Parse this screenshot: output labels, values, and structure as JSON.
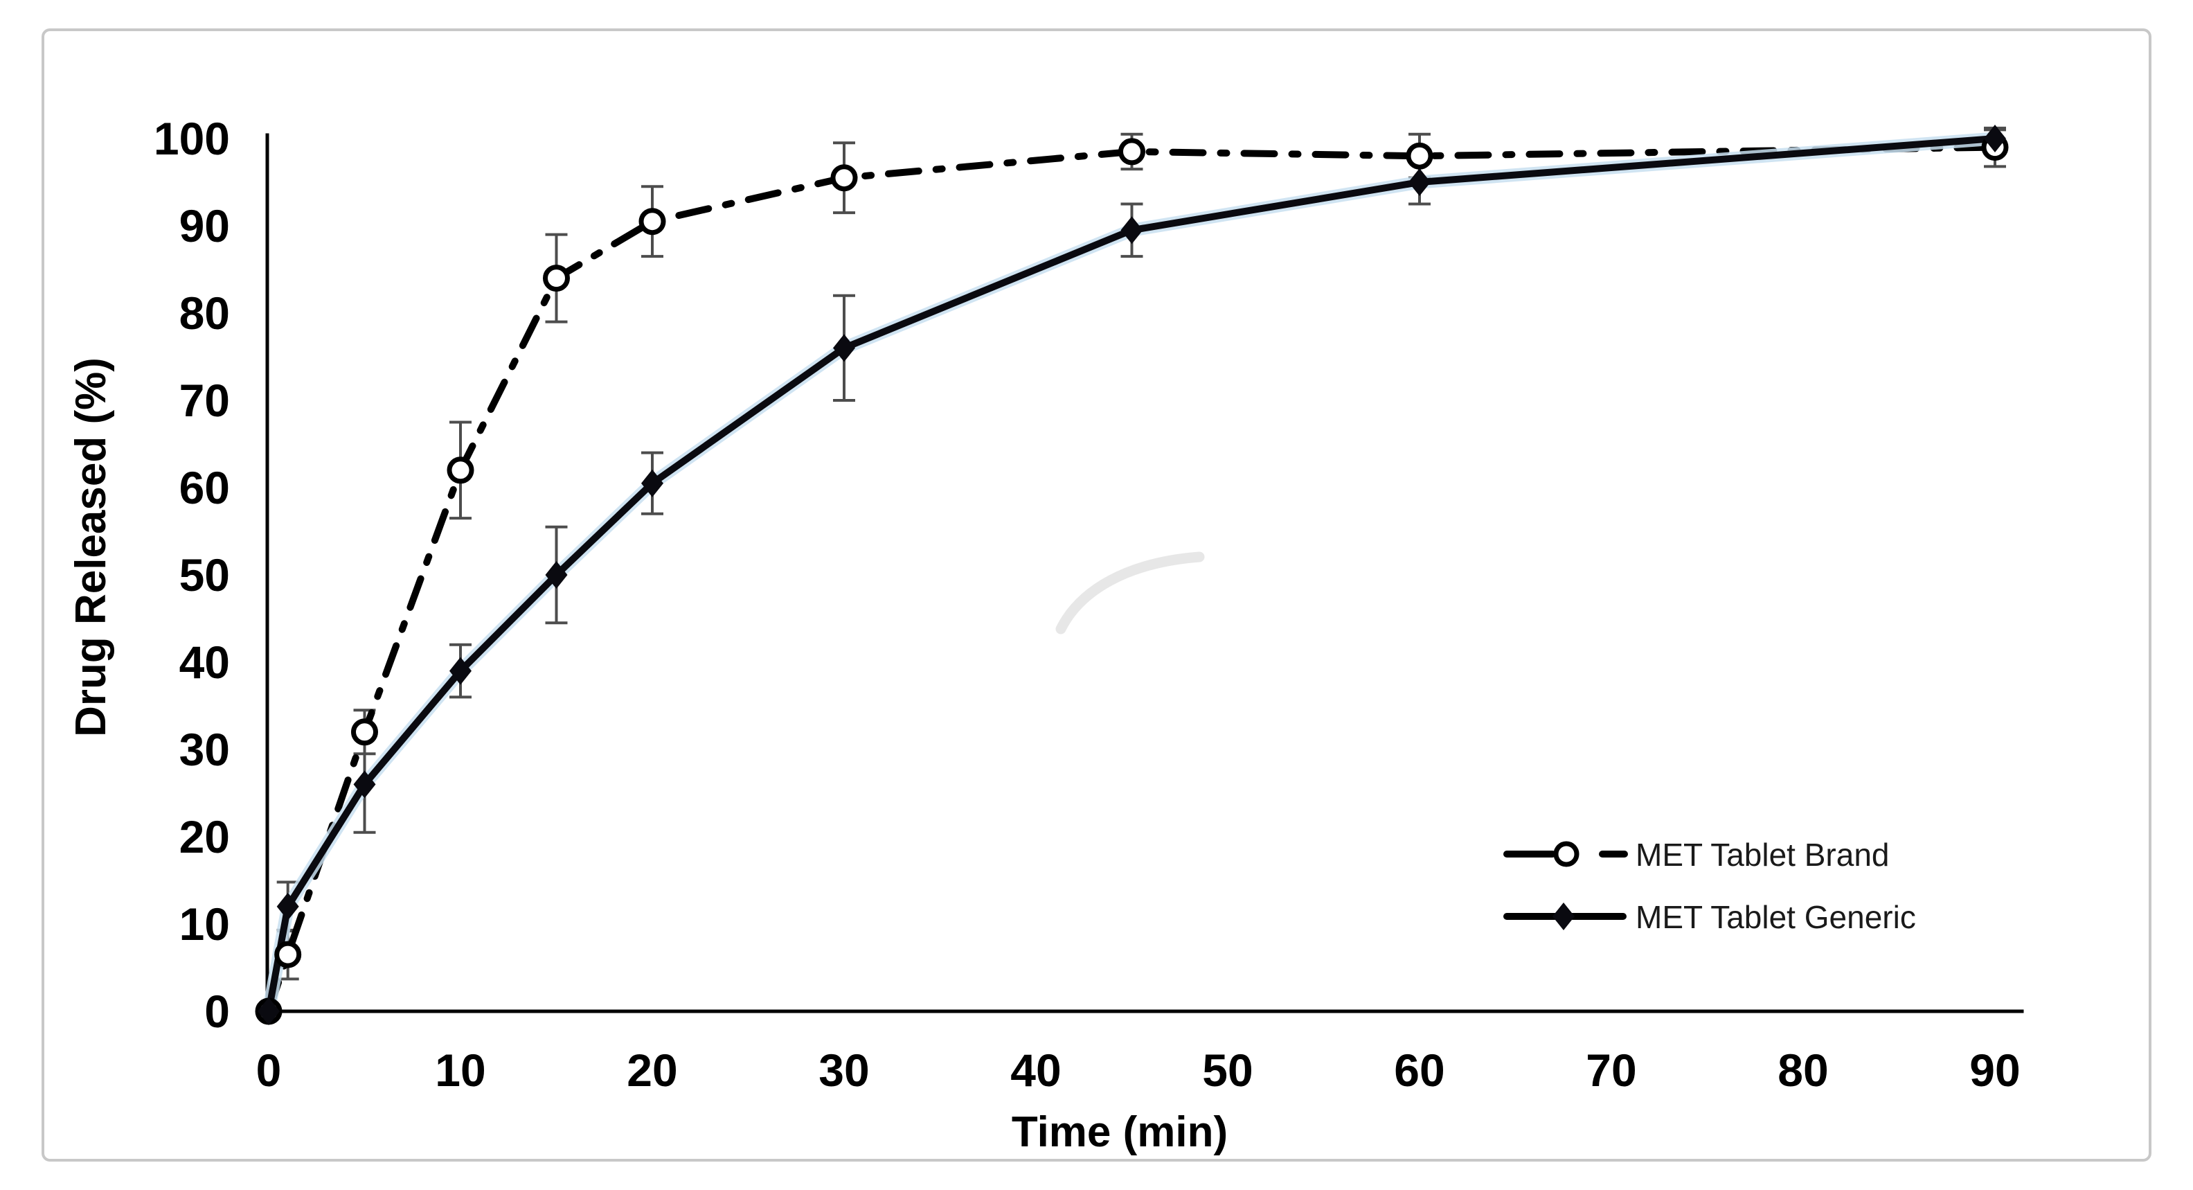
{
  "figure": {
    "background_color": "#ffffff",
    "border_color": "#c8c8c8"
  },
  "chart_data": {
    "type": "line",
    "title": "",
    "xlabel": "Time (min)",
    "ylabel": "Drug Released (%)",
    "x_ticks": [
      0,
      10,
      20,
      30,
      40,
      50,
      60,
      70,
      80,
      90
    ],
    "y_ticks": [
      0,
      10,
      20,
      30,
      40,
      50,
      60,
      70,
      80,
      90,
      100
    ],
    "xlim": [
      0,
      91
    ],
    "ylim": [
      0,
      100
    ],
    "grid": false,
    "legend_position": "middle-right",
    "error_bar_color": "#4d4d4d",
    "x": [
      0,
      1,
      5,
      10,
      15,
      20,
      30,
      45,
      60,
      90
    ],
    "series": [
      {
        "name": "MET Tablet Brand",
        "marker": "open-circle",
        "line_style": "dash-dot",
        "color": "#000000",
        "values": [
          0,
          6.5,
          32,
          62,
          84,
          90.5,
          95.5,
          98.5,
          98,
          99
        ],
        "error": [
          0,
          2.8,
          2.5,
          5.5,
          5,
          4,
          4,
          2,
          2.5,
          2.2
        ]
      },
      {
        "name": "MET Tablet Generic",
        "marker": "filled-diamond",
        "line_style": "solid",
        "color": "#0a0a10",
        "halo_color": "#c8dff0",
        "values": [
          0,
          12,
          26,
          39,
          50,
          60.5,
          76,
          89.5,
          95,
          100
        ],
        "error": [
          0,
          2.8,
          5.5,
          3,
          5.5,
          3.5,
          6,
          3,
          2.5,
          1
        ]
      }
    ]
  }
}
